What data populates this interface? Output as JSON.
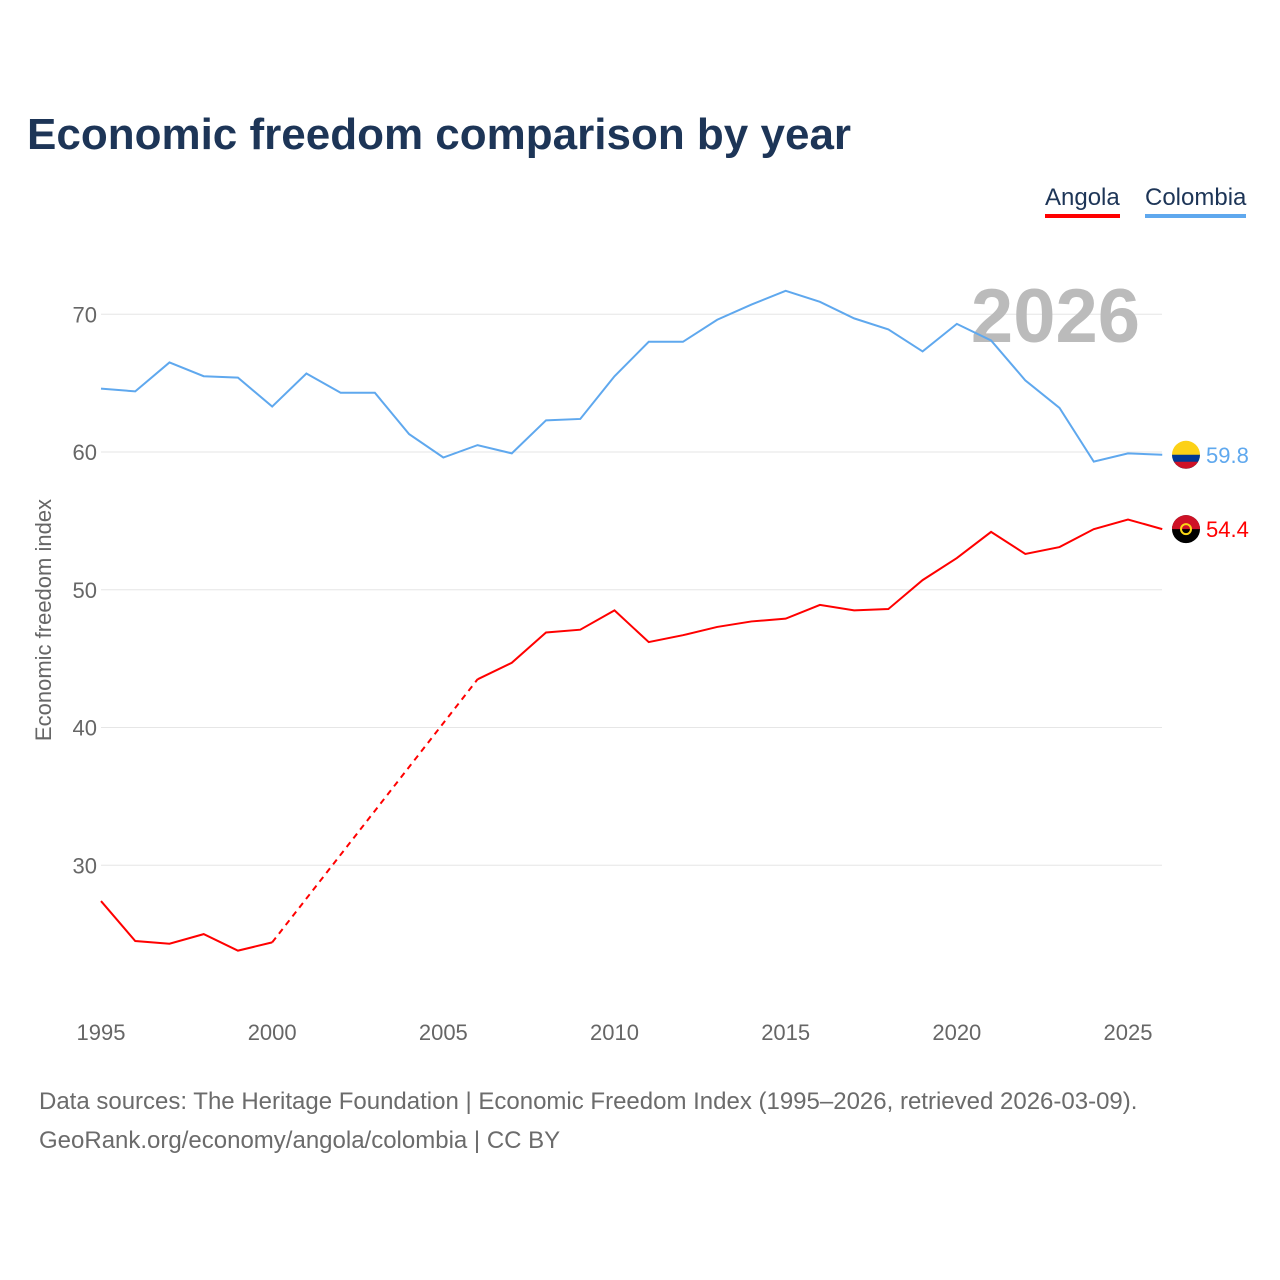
{
  "chart_data": {
    "type": "line",
    "title": "Economic freedom comparison by year",
    "ylabel": "Economic freedom index",
    "xlabel": "",
    "ylim": [
      20,
      75
    ],
    "xlim": [
      1995,
      2026
    ],
    "yticks": [
      30,
      40,
      50,
      60,
      70
    ],
    "xticks": [
      1995,
      2000,
      2005,
      2010,
      2015,
      2020,
      2025
    ],
    "year_label": "2026",
    "grid": true,
    "legend_position": "top-right",
    "x": [
      1995,
      1996,
      1997,
      1998,
      1999,
      2000,
      2001,
      2002,
      2003,
      2004,
      2005,
      2006,
      2007,
      2008,
      2009,
      2010,
      2011,
      2012,
      2013,
      2014,
      2015,
      2016,
      2017,
      2018,
      2019,
      2020,
      2021,
      2022,
      2023,
      2024,
      2025,
      2026
    ],
    "series": [
      {
        "name": "Angola",
        "color": "#ff0000",
        "end_label": "54.4",
        "values": [
          27.4,
          24.5,
          24.3,
          25.0,
          23.8,
          24.4,
          null,
          null,
          null,
          null,
          null,
          43.5,
          44.7,
          46.9,
          47.1,
          48.5,
          46.2,
          46.7,
          47.3,
          47.7,
          47.9,
          48.9,
          48.5,
          48.6,
          50.7,
          52.3,
          54.2,
          52.6,
          53.1,
          54.4,
          55.1,
          54.4
        ]
      },
      {
        "name": "Colombia",
        "color": "#5fa8ee",
        "end_label": "59.8",
        "values": [
          64.6,
          64.4,
          66.5,
          65.5,
          65.4,
          63.3,
          65.7,
          64.3,
          64.3,
          61.3,
          59.6,
          60.5,
          59.9,
          62.3,
          62.4,
          65.5,
          68.0,
          68.0,
          69.6,
          70.7,
          71.7,
          70.9,
          69.7,
          68.9,
          67.3,
          69.3,
          68.1,
          65.2,
          63.2,
          59.3,
          59.9,
          59.8
        ]
      }
    ]
  },
  "footer": {
    "line1": "Data sources: The Heritage Foundation | Economic Freedom Index (1995–2026, retrieved 2026-03-09).",
    "line2": "GeoRank.org/economy/angola/colombia | CC BY"
  }
}
